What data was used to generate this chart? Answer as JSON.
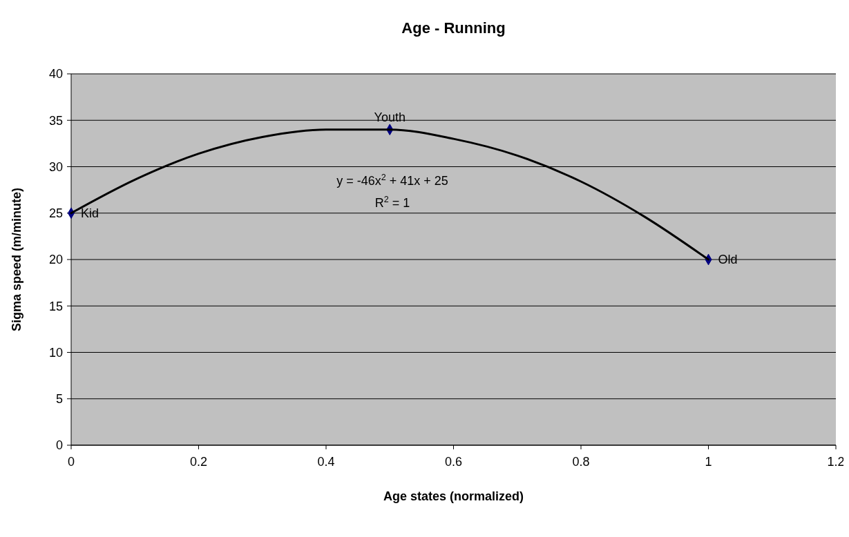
{
  "chart_data": {
    "type": "scatter",
    "title": "Age - Running",
    "xlabel": "Age states (normalized)",
    "ylabel": "Sigma speed (m/minute)",
    "x": [
      0,
      0.5,
      1
    ],
    "series": [
      {
        "color": "#000080",
        "values": [
          25,
          34,
          20
        ],
        "marker": "diamond"
      },
      {
        "type": "line",
        "color": "#000000",
        "x": [
          0,
          0.1,
          0.2,
          0.3,
          0.4,
          0.5,
          0.6,
          0.7,
          0.8,
          0.9,
          1
        ],
        "values": [
          25,
          28.6,
          31.4,
          33.2,
          34,
          34,
          33,
          31.2,
          28.4,
          24.6,
          20
        ],
        "marker": "none"
      }
    ],
    "xlim": [
      0,
      1.2
    ],
    "xticks": [
      0,
      0.2,
      0.4,
      0.6,
      0.8,
      1,
      1.2
    ],
    "ylim": [
      0,
      40
    ],
    "yticks": [
      0,
      5,
      10,
      15,
      20,
      25,
      30,
      35,
      40
    ],
    "grid": "y",
    "legend": false,
    "annotations": [
      {
        "text": "Kid",
        "x": 0,
        "y": 25
      },
      {
        "text": "Youth",
        "x": 0.5,
        "y": 34
      },
      {
        "text": "Old",
        "x": 1,
        "y": 20
      },
      "y = -46x$^{2}$ + 41x + 25",
      "R$^{2}$ = 1"
    ]
  }
}
